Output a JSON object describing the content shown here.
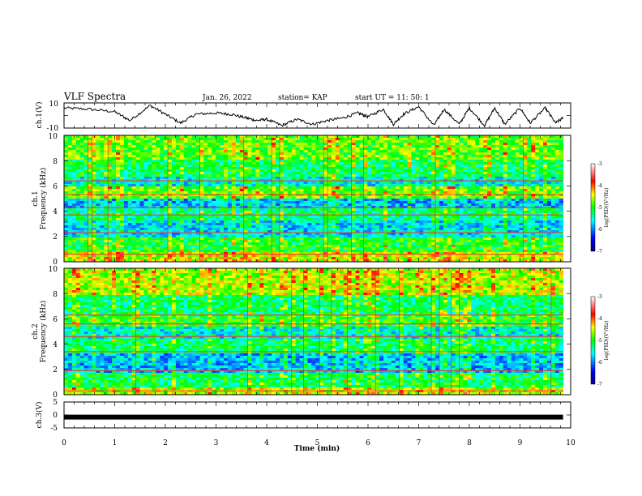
{
  "header": {
    "title": "VLF Spectra",
    "date": "Jan. 26, 2022",
    "station": "station= KAP",
    "start": "start  UT =  11: 50: 1"
  },
  "chart_data": [
    {
      "type": "line",
      "name": "ch1-waveform",
      "ylabel": "ch.1(V)",
      "ylim": [
        -10,
        10
      ],
      "yticks": [
        "10",
        "-10"
      ],
      "xlim": [
        0,
        10
      ],
      "x_min": [
        0,
        0.5,
        1.0,
        1.3,
        1.7,
        2.0,
        2.3,
        2.6,
        3.0,
        3.3,
        3.6,
        3.8,
        4.0,
        4.3,
        4.6,
        4.9,
        5.2,
        5.5,
        5.8,
        6.0,
        6.3,
        6.5,
        6.7,
        7.0,
        7.3,
        7.5,
        7.8,
        8.0,
        8.3,
        8.5,
        8.7,
        9.0,
        9.2,
        9.5,
        9.7,
        9.85
      ],
      "values": [
        6,
        5,
        3,
        -4,
        8,
        1,
        -6,
        1,
        2,
        1,
        -2,
        -4,
        -3,
        -8,
        -3,
        -7,
        -4,
        -2,
        2,
        -1,
        5,
        -7,
        1,
        7,
        -8,
        5,
        -7,
        6,
        -8,
        6,
        -7,
        6,
        -6,
        6,
        -6,
        -2
      ]
    },
    {
      "type": "heatmap",
      "name": "ch1-spectrogram",
      "ylabel_top": "ch.1",
      "ylabel": "Frequency (kHz)",
      "ylim": [
        0,
        10
      ],
      "yticks": [
        "0",
        "2",
        "4",
        "6",
        "8",
        "10"
      ],
      "xlim": [
        0,
        10
      ],
      "colorbar": {
        "label": "log(PSD)(V²/Hz)",
        "range": [
          -7,
          -3
        ],
        "ticks": [
          "-3",
          "-4",
          "-5",
          "-6",
          "-7"
        ]
      },
      "bands_khz": [
        0.6,
        2.3,
        3.7,
        4.3,
        5.3,
        6.4
      ]
    },
    {
      "type": "heatmap",
      "name": "ch2-spectrogram",
      "ylabel_top": "ch.2",
      "ylabel": "Frequency (kHz)",
      "ylim": [
        0,
        10
      ],
      "yticks": [
        "0",
        "2",
        "4",
        "6",
        "8",
        "10"
      ],
      "xlim": [
        0,
        10
      ],
      "colorbar": {
        "label": "log(PSD)(V²/Hz)",
        "range": [
          -7,
          -3
        ],
        "ticks": [
          "-3",
          "-4",
          "-5",
          "-6",
          "-7"
        ]
      },
      "bands_khz": [
        0.3,
        1.9,
        3.4,
        4.6,
        5.6,
        6.3
      ]
    },
    {
      "type": "line",
      "name": "ch3-waveform",
      "ylabel": "ch.3(V)",
      "ylim": [
        -5,
        5
      ],
      "yticks": [
        "5",
        "0",
        "-5"
      ],
      "xlim": [
        0,
        10
      ],
      "x_min": [
        0,
        9.85
      ],
      "values": [
        -0.8,
        -0.8
      ]
    }
  ],
  "xaxis": {
    "label": "Time (min)",
    "ticks": [
      "0",
      "1",
      "2",
      "3",
      "4",
      "5",
      "6",
      "7",
      "8",
      "9",
      "10"
    ]
  }
}
